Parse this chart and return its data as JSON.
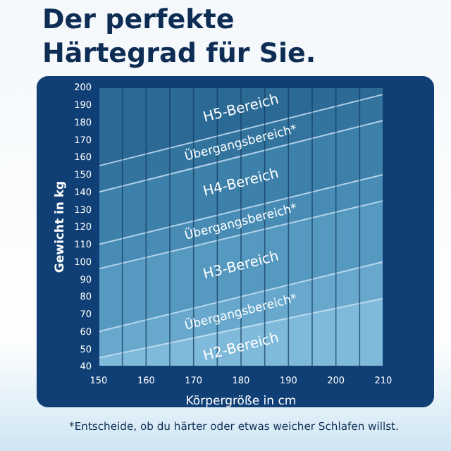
{
  "chart_data": {
    "type": "area",
    "title": "Der perfekte Härtegrad für Sie.",
    "xlabel": "Körpergröße in cm",
    "ylabel": "Gewicht in kg",
    "x": [
      150,
      210
    ],
    "series": [
      {
        "color": "#2a6a95",
        "values": [
          200,
          200
        ]
      },
      {
        "color": "#33749f",
        "values": [
          155,
          196
        ]
      },
      {
        "color": "#3d80aa",
        "values": [
          140,
          181
        ]
      },
      {
        "color": "#488cb5",
        "values": [
          110,
          150
        ]
      },
      {
        "color": "#5699c0",
        "values": [
          96,
          135
        ]
      },
      {
        "color": "#67a8cc",
        "values": [
          60,
          100
        ]
      },
      {
        "color": "#80badb",
        "values": [
          45,
          79
        ]
      }
    ],
    "xlim": [
      150,
      210
    ],
    "ylim": [
      40,
      200
    ],
    "xticks": [
      150,
      {
        "value": 155,
        "label": null
      },
      160,
      {
        "value": 165,
        "label": null
      },
      170,
      {
        "value": 175,
        "label": null
      },
      180,
      {
        "value": 185,
        "label": null
      },
      190,
      {
        "value": 195,
        "label": null
      },
      200,
      {
        "value": 205,
        "label": null
      },
      210
    ],
    "yticks": [
      40,
      50,
      60,
      70,
      80,
      90,
      100,
      110,
      120,
      130,
      140,
      150,
      160,
      170,
      180,
      190,
      200
    ],
    "grid": "x",
    "annotations": [
      "H5-Bereich",
      "Übergangsbereich*",
      "H4-Bereich",
      "Übergangsbereich*",
      "H3-Bereich",
      "Übergangsbereich*",
      "H2-Bereich",
      "*Entscheide, ob du härter oder etwas weicher Schlafen willst."
    ]
  }
}
